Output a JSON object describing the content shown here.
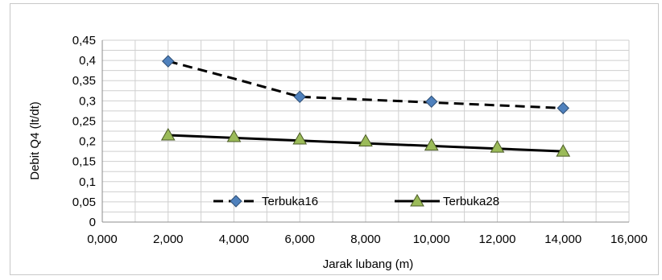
{
  "chart_data": {
    "type": "line",
    "title": "",
    "xlabel": "Jarak lubang (m)",
    "ylabel": "Debit Q4 (lt/dt)",
    "xlim": [
      0,
      16000
    ],
    "ylim": [
      0,
      0.45
    ],
    "x_ticks": [
      "0,000",
      "2,000",
      "4,000",
      "6,000",
      "8,000",
      "10,000",
      "12,000",
      "14,000",
      "16,000"
    ],
    "y_ticks": [
      "0",
      "0,05",
      "0,1",
      "0,15",
      "0,2",
      "0,25",
      "0,3",
      "0,35",
      "0,4",
      "0,45"
    ],
    "grid": true,
    "legend_position": "bottom-inside",
    "series": [
      {
        "name": "Terbuka16",
        "marker": "diamond",
        "marker_color": "#4f81bd",
        "line_style": "dashed",
        "line_color": "#000000",
        "points": [
          [
            2000,
            0.398
          ],
          [
            6000,
            0.31
          ],
          [
            10000,
            0.298
          ],
          [
            14000,
            0.282
          ]
        ],
        "trend": [
          [
            2000,
            0.398
          ],
          [
            4000,
            0.355
          ],
          [
            6000,
            0.31
          ],
          [
            14000,
            0.282
          ]
        ]
      },
      {
        "name": "Terbuka28",
        "marker": "triangle",
        "marker_color": "#9bbb59",
        "line_style": "solid",
        "line_color": "#000000",
        "points": [
          [
            2000,
            0.215
          ],
          [
            4000,
            0.211
          ],
          [
            6000,
            0.205
          ],
          [
            8000,
            0.2
          ],
          [
            10000,
            0.19
          ],
          [
            12000,
            0.185
          ],
          [
            14000,
            0.175
          ]
        ],
        "trend": [
          [
            2000,
            0.215
          ],
          [
            14000,
            0.175
          ]
        ]
      }
    ]
  }
}
